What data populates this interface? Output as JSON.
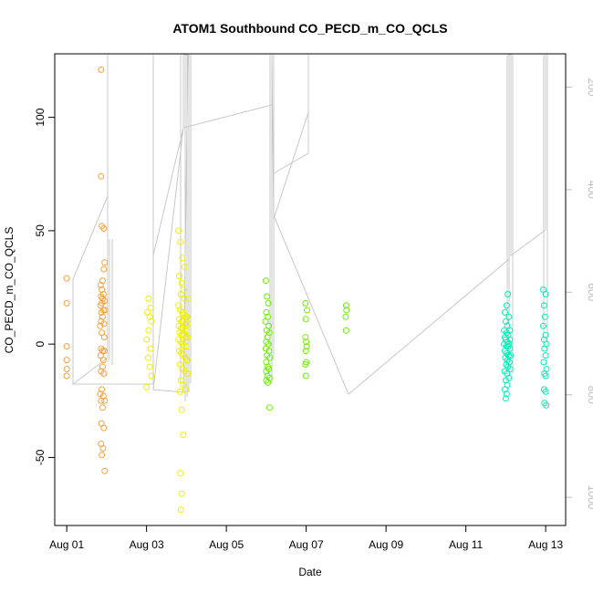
{
  "chart_data": {
    "type": "scatter",
    "title": "ATOM1 Southbound CO_PECD_m_CO_QCLS",
    "xlabel": "Date",
    "ylabel": "CO_PECD_m_CO_QCLS",
    "x_ticks": [
      {
        "label": "Aug 01",
        "day": 1
      },
      {
        "label": "Aug 03",
        "day": 3
      },
      {
        "label": "Aug 05",
        "day": 5
      },
      {
        "label": "Aug 07",
        "day": 7
      },
      {
        "label": "Aug 09",
        "day": 9
      },
      {
        "label": "Aug 11",
        "day": 11
      },
      {
        "label": "Aug 13",
        "day": 13
      }
    ],
    "xlim": [
      0.7,
      13.5
    ],
    "y_ticks": [
      -50,
      0,
      50,
      100
    ],
    "ylim": [
      -80,
      128
    ],
    "secondary_axis": {
      "position": "right",
      "inverted": true,
      "ticks": [
        200,
        400,
        600,
        800,
        1000
      ],
      "lim": [
        1055,
        135
      ],
      "color": "#bdbdbd"
    },
    "line_color": "#c8c8c8",
    "grid": false,
    "series": [
      {
        "color": "#f5a03c",
        "points": [
          [
            1.0,
            29
          ],
          [
            1.0,
            18
          ],
          [
            1.0,
            -1
          ],
          [
            1.0,
            -7
          ],
          [
            1.0,
            -11
          ],
          [
            1.0,
            -14
          ],
          [
            1.86,
            121
          ],
          [
            1.86,
            74
          ],
          [
            1.88,
            52
          ],
          [
            1.93,
            51
          ],
          [
            1.95,
            36
          ],
          [
            1.93,
            33
          ],
          [
            1.9,
            28
          ],
          [
            1.85,
            26
          ],
          [
            1.88,
            24
          ],
          [
            1.92,
            22
          ],
          [
            1.86,
            21
          ],
          [
            1.9,
            20
          ],
          [
            1.95,
            19
          ],
          [
            1.88,
            18
          ],
          [
            1.85,
            17
          ],
          [
            1.92,
            15
          ],
          [
            1.96,
            15
          ],
          [
            1.87,
            14
          ],
          [
            1.9,
            12
          ],
          [
            1.86,
            10
          ],
          [
            1.93,
            9
          ],
          [
            1.84,
            8
          ],
          [
            1.88,
            5
          ],
          [
            1.94,
            3
          ],
          [
            1.86,
            -2
          ],
          [
            1.9,
            -3
          ],
          [
            1.94,
            -3
          ],
          [
            1.85,
            -5
          ],
          [
            1.92,
            -7
          ],
          [
            1.9,
            -10
          ],
          [
            1.86,
            -12
          ],
          [
            1.93,
            -13
          ],
          [
            1.88,
            -20
          ],
          [
            1.84,
            -22
          ],
          [
            1.92,
            -23
          ],
          [
            1.86,
            -25
          ],
          [
            1.95,
            -25
          ],
          [
            1.9,
            -28
          ],
          [
            1.87,
            -35
          ],
          [
            1.93,
            -37
          ],
          [
            1.86,
            -44
          ],
          [
            1.91,
            -46
          ],
          [
            1.88,
            -49
          ],
          [
            1.95,
            -56
          ]
        ]
      },
      {
        "color": "#f0f000",
        "points": [
          [
            3.05,
            20
          ],
          [
            3.1,
            16
          ],
          [
            3.02,
            14
          ],
          [
            3.08,
            12
          ],
          [
            3.12,
            10
          ],
          [
            3.05,
            6
          ],
          [
            3.0,
            2
          ],
          [
            3.1,
            -2
          ],
          [
            3.04,
            -6
          ],
          [
            3.08,
            -10
          ],
          [
            3.12,
            -14
          ],
          [
            3.0,
            -19
          ],
          [
            3.8,
            50
          ],
          [
            3.85,
            45
          ],
          [
            3.9,
            38
          ],
          [
            3.95,
            34
          ],
          [
            3.82,
            30
          ],
          [
            3.88,
            27
          ],
          [
            3.92,
            24
          ],
          [
            3.86,
            22
          ],
          [
            3.96,
            20
          ],
          [
            4.05,
            20
          ],
          [
            3.8,
            17
          ],
          [
            3.84,
            15
          ],
          [
            3.9,
            14
          ],
          [
            3.94,
            13
          ],
          [
            3.98,
            12
          ],
          [
            4.02,
            12
          ],
          [
            3.82,
            11
          ],
          [
            3.88,
            10
          ],
          [
            3.92,
            10
          ],
          [
            3.97,
            9
          ],
          [
            4.04,
            9
          ],
          [
            3.81,
            8
          ],
          [
            3.86,
            7
          ],
          [
            3.9,
            7
          ],
          [
            3.95,
            6
          ],
          [
            4.0,
            6
          ],
          [
            3.83,
            5
          ],
          [
            3.88,
            4
          ],
          [
            3.93,
            4
          ],
          [
            3.98,
            3
          ],
          [
            4.03,
            3
          ],
          [
            3.8,
            2
          ],
          [
            3.85,
            1
          ],
          [
            3.9,
            0
          ],
          [
            3.95,
            -1
          ],
          [
            4.0,
            -1
          ],
          [
            3.82,
            -3
          ],
          [
            3.87,
            -4
          ],
          [
            3.92,
            -5
          ],
          [
            3.97,
            -6
          ],
          [
            4.02,
            -7
          ],
          [
            3.84,
            -9
          ],
          [
            3.9,
            -11
          ],
          [
            3.96,
            -12
          ],
          [
            4.03,
            -13
          ],
          [
            3.86,
            -16
          ],
          [
            3.92,
            -18
          ],
          [
            3.98,
            -20
          ],
          [
            3.84,
            -21
          ],
          [
            3.88,
            -29
          ],
          [
            3.92,
            -40
          ],
          [
            3.85,
            -57
          ],
          [
            3.88,
            -66
          ],
          [
            3.86,
            -73
          ]
        ]
      },
      {
        "color": "#6cf000",
        "points": [
          [
            5.99,
            28
          ],
          [
            6.02,
            21
          ],
          [
            6.05,
            18
          ],
          [
            6.0,
            14
          ],
          [
            6.04,
            12
          ],
          [
            5.98,
            10
          ],
          [
            6.06,
            8
          ],
          [
            6.01,
            6
          ],
          [
            6.08,
            5
          ],
          [
            6.03,
            3
          ],
          [
            6.0,
            1
          ],
          [
            6.05,
            0
          ],
          [
            5.99,
            -2
          ],
          [
            6.07,
            -3
          ],
          [
            6.02,
            -5
          ],
          [
            6.09,
            -6
          ],
          [
            6.0,
            -8
          ],
          [
            6.04,
            -10
          ],
          [
            6.06,
            -11
          ],
          [
            6.0,
            -12
          ],
          [
            6.03,
            -14
          ],
          [
            6.08,
            -15
          ],
          [
            6.0,
            -16
          ],
          [
            6.04,
            -17
          ],
          [
            6.08,
            -28
          ],
          [
            6.98,
            18
          ],
          [
            7.02,
            15
          ],
          [
            6.99,
            11
          ],
          [
            6.98,
            3
          ],
          [
            7.0,
            1
          ],
          [
            7.01,
            -1
          ],
          [
            6.99,
            -3
          ],
          [
            7.0,
            -8
          ],
          [
            6.98,
            -9
          ],
          [
            6.99,
            -14
          ],
          [
            8.0,
            17
          ],
          [
            8.01,
            15
          ],
          [
            7.99,
            12
          ],
          [
            8.0,
            6
          ]
        ]
      },
      {
        "color": "#00f0b8",
        "points": [
          [
            12.05,
            22
          ],
          [
            12.02,
            17
          ],
          [
            11.98,
            14
          ],
          [
            12.08,
            12
          ],
          [
            12.0,
            10
          ],
          [
            12.04,
            8
          ],
          [
            11.96,
            6
          ],
          [
            12.1,
            6
          ],
          [
            12.02,
            5
          ],
          [
            12.06,
            4
          ],
          [
            11.98,
            3
          ],
          [
            12.1,
            2
          ],
          [
            12.0,
            2
          ],
          [
            12.04,
            1
          ],
          [
            12.08,
            0
          ],
          [
            11.96,
            0
          ],
          [
            12.02,
            -1
          ],
          [
            12.06,
            -1
          ],
          [
            12.1,
            -2
          ],
          [
            11.98,
            -3
          ],
          [
            12.03,
            -4
          ],
          [
            12.07,
            -5
          ],
          [
            12.12,
            -5
          ],
          [
            11.99,
            -6
          ],
          [
            12.04,
            -7
          ],
          [
            12.09,
            -8
          ],
          [
            12.01,
            -9
          ],
          [
            12.05,
            -10
          ],
          [
            12.11,
            -11
          ],
          [
            11.97,
            -12
          ],
          [
            12.03,
            -13
          ],
          [
            12.08,
            -15
          ],
          [
            12.0,
            -16
          ],
          [
            12.04,
            -18
          ],
          [
            11.98,
            -20
          ],
          [
            12.02,
            -22
          ],
          [
            12.0,
            -24
          ],
          [
            12.94,
            24
          ],
          [
            13.0,
            22
          ],
          [
            12.96,
            17
          ],
          [
            12.98,
            12
          ],
          [
            12.94,
            8
          ],
          [
            13.0,
            4
          ],
          [
            12.96,
            2
          ],
          [
            13.02,
            0
          ],
          [
            12.97,
            -2
          ],
          [
            13.0,
            -5
          ],
          [
            12.95,
            -8
          ],
          [
            13.02,
            -11
          ],
          [
            12.97,
            -13
          ],
          [
            13.0,
            -14
          ],
          [
            12.96,
            -20
          ],
          [
            13.0,
            -21
          ],
          [
            12.97,
            -26
          ],
          [
            13.01,
            -27
          ]
        ]
      }
    ]
  }
}
